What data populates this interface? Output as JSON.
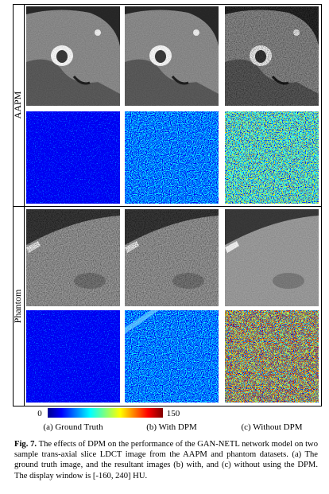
{
  "figure": {
    "row_labels": [
      "AAPM",
      "Phantom"
    ],
    "colorbar": {
      "min": "0",
      "max": "150"
    },
    "column_captions": [
      "(a) Ground Truth",
      "(b) With DPM",
      "(c) Without DPM"
    ],
    "caption": {
      "label": "Fig. 7.",
      "text": "The effects of DPM on the performance of the GAN-NETL network model on two sample trans-axial slice LDCT image from the AAPM and phantom datasets. (a) The ground truth image, and the resultant images (b) with, and (c) without using the DPM. The display window is [-160, 240] HU."
    }
  }
}
